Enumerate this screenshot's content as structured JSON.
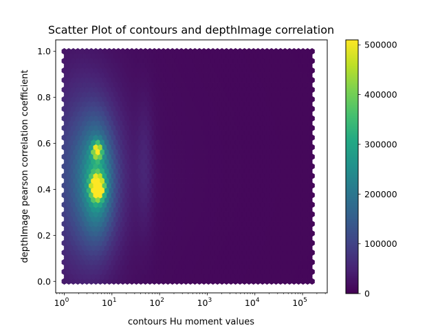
{
  "chart_data": {
    "type": "heatmap",
    "subtype": "hexbin",
    "title": "Scatter Plot of contours and depthImage correlation",
    "xlabel": "contours Hu moment values",
    "ylabel": "depthImage pearson correlation coefficient",
    "xscale": "log",
    "x_range": [
      1,
      158489
    ],
    "xlim": [
      0.66,
      330000
    ],
    "y_range": [
      0,
      1
    ],
    "ylim": [
      -0.05,
      1.05
    ],
    "x_ticks": [
      {
        "value": 1,
        "base": "10",
        "exp": "0"
      },
      {
        "value": 10,
        "base": "10",
        "exp": "1"
      },
      {
        "value": 100,
        "base": "10",
        "exp": "2"
      },
      {
        "value": 1000,
        "base": "10",
        "exp": "3"
      },
      {
        "value": 10000,
        "base": "10",
        "exp": "4"
      },
      {
        "value": 100000,
        "base": "10",
        "exp": "5"
      }
    ],
    "y_ticks": [
      {
        "value": 0.0,
        "label": "0.0"
      },
      {
        "value": 0.2,
        "label": "0.2"
      },
      {
        "value": 0.4,
        "label": "0.4"
      },
      {
        "value": 0.6,
        "label": "0.6"
      },
      {
        "value": 0.8,
        "label": "0.8"
      },
      {
        "value": 1.0,
        "label": "1.0"
      }
    ],
    "colormap": "viridis",
    "colorbar": {
      "min": 0,
      "max": 510000,
      "ticks": [
        {
          "value": 0,
          "label": "0"
        },
        {
          "value": 100000,
          "label": "100000"
        },
        {
          "value": 200000,
          "label": "200000"
        },
        {
          "value": 300000,
          "label": "300000"
        },
        {
          "value": 400000,
          "label": "400000"
        },
        {
          "value": 500000,
          "label": "500000"
        }
      ]
    },
    "peak": {
      "x": 5,
      "y": 0.41,
      "count": 500000
    },
    "secondary_peak": {
      "x": 5,
      "y": 0.57,
      "count": 330000
    },
    "grid": false
  }
}
